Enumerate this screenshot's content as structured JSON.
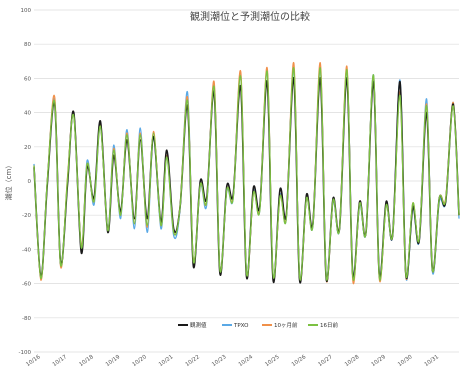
{
  "chart_data": {
    "type": "line",
    "title": "観測潮位と予測潮位の比較",
    "ylabel": "潮位（cm）",
    "xlabel": "",
    "ylim": [
      -100,
      100
    ],
    "yticks": [
      -100,
      -80,
      -60,
      -40,
      -20,
      0,
      20,
      40,
      60,
      80,
      100
    ],
    "xlim": [
      0,
      16
    ],
    "xticks": [
      {
        "x": 0,
        "label": "10/16"
      },
      {
        "x": 1,
        "label": "10/17"
      },
      {
        "x": 2,
        "label": "10/18"
      },
      {
        "x": 3,
        "label": "10/19"
      },
      {
        "x": 4,
        "label": "10/20"
      },
      {
        "x": 5,
        "label": "10/21"
      },
      {
        "x": 6,
        "label": "10/22"
      },
      {
        "x": 7,
        "label": "10/23"
      },
      {
        "x": 8,
        "label": "10/24"
      },
      {
        "x": 9,
        "label": "10/25"
      },
      {
        "x": 10,
        "label": "10/26"
      },
      {
        "x": 11,
        "label": "10/27"
      },
      {
        "x": 12,
        "label": "10/28"
      },
      {
        "x": 13,
        "label": "10/29"
      },
      {
        "x": 14,
        "label": "10/30"
      },
      {
        "x": 15,
        "label": "10/31"
      }
    ],
    "grid": true,
    "legend_position": "bottom",
    "series": [
      {
        "name": "観測値",
        "color": "#1a1a1a",
        "x": [
          0,
          0.26,
          0.5,
          0.78,
          1,
          1.26,
          1.5,
          1.78,
          2,
          2.26,
          2.5,
          2.78,
          3,
          3.26,
          3.5,
          3.78,
          4,
          4.26,
          4.5,
          4.78,
          5,
          5.26,
          5.5,
          5.78,
          6,
          6.26,
          6.5,
          6.78,
          7,
          7.26,
          7.5,
          7.78,
          8,
          8.26,
          8.5,
          8.78,
          9,
          9.26,
          9.5,
          9.78,
          10,
          10.26,
          10.5,
          10.78,
          11,
          11.26,
          11.5,
          11.78,
          12,
          12.26,
          12.5,
          12.78,
          13,
          13.26,
          13.5,
          13.78,
          14,
          14.26,
          14.5,
          14.78,
          15,
          15.26,
          15.5,
          15.78,
          16
        ],
        "values": [
          8,
          -56,
          -2,
          45,
          -48,
          -2,
          40,
          -42,
          8,
          -10,
          35,
          -30,
          15,
          -18,
          24,
          -22,
          24,
          -22,
          26,
          -24,
          18,
          -28,
          -15,
          44,
          -50,
          0,
          -10,
          52,
          -54,
          -3,
          -8,
          55,
          -56,
          -4,
          -15,
          58,
          -58,
          -5,
          -20,
          60,
          -58,
          -8,
          -25,
          60,
          -57,
          -10,
          -28,
          60,
          -55,
          -12,
          -30,
          58,
          -55,
          -12,
          -32,
          58,
          -55,
          -15,
          -35,
          40,
          -52,
          -10,
          -12,
          45,
          -20
        ]
      },
      {
        "name": "TPXO",
        "color": "#5aa9e6",
        "x": [
          0,
          0.26,
          0.5,
          0.78,
          1,
          1.26,
          1.5,
          1.78,
          2,
          2.26,
          2.5,
          2.78,
          3,
          3.26,
          3.5,
          3.78,
          4,
          4.26,
          4.5,
          4.78,
          5,
          5.26,
          5.5,
          5.78,
          6,
          6.26,
          6.5,
          6.78,
          7,
          7.26,
          7.5,
          7.78,
          8,
          8.26,
          8.5,
          8.78,
          9,
          9.26,
          9.5,
          9.78,
          10,
          10.26,
          10.5,
          10.78,
          11,
          11.26,
          11.5,
          11.78,
          12,
          12.26,
          12.5,
          12.78,
          13,
          13.26,
          13.5,
          13.78,
          14,
          14.26,
          14.5,
          14.78,
          15,
          15.26,
          15.5,
          15.78,
          16
        ],
        "values": [
          10,
          -57,
          0,
          47,
          -49,
          0,
          39,
          -40,
          12,
          -14,
          32,
          -28,
          21,
          -22,
          30,
          -28,
          31,
          -30,
          26,
          -28,
          14,
          -32,
          -16,
          52,
          -48,
          -3,
          -14,
          56,
          -52,
          -6,
          -10,
          62,
          -54,
          -6,
          -17,
          64,
          -55,
          -8,
          -22,
          66,
          -56,
          -10,
          -26,
          66,
          -55,
          -12,
          -28,
          65,
          -54,
          -14,
          -30,
          62,
          -54,
          -14,
          -32,
          59,
          -56,
          -16,
          -35,
          48,
          -53,
          -12,
          -12,
          46,
          -22
        ]
      },
      {
        "name": "10ヶ月前",
        "color": "#f0904a",
        "x": [
          0,
          0.26,
          0.5,
          0.78,
          1,
          1.26,
          1.5,
          1.78,
          2,
          2.26,
          2.5,
          2.78,
          3,
          3.26,
          3.5,
          3.78,
          4,
          4.26,
          4.5,
          4.78,
          5,
          5.26,
          5.5,
          5.78,
          6,
          6.26,
          6.5,
          6.78,
          7,
          7.26,
          7.5,
          7.78,
          8,
          8.26,
          8.5,
          8.78,
          9,
          9.26,
          9.5,
          9.78,
          10,
          10.26,
          10.5,
          10.78,
          11,
          11.26,
          11.5,
          11.78,
          12,
          12.26,
          12.5,
          12.78,
          13,
          13.26,
          13.5,
          13.78,
          14,
          14.26,
          14.5,
          14.78,
          15,
          15.26,
          15.5,
          15.78,
          16
        ],
        "values": [
          9,
          -58,
          0,
          49,
          -50,
          2,
          39,
          -38,
          10,
          -12,
          33,
          -29,
          19,
          -20,
          28,
          -25,
          28,
          -27,
          29,
          -26,
          15,
          -30,
          -14,
          49,
          -47,
          -2,
          -12,
          58,
          -52,
          -5,
          -9,
          64,
          -55,
          -7,
          -16,
          66,
          -56,
          -9,
          -21,
          69,
          -57,
          -10,
          -25,
          69,
          -57,
          -11,
          -27,
          67,
          -58,
          -12,
          -30,
          61,
          -57,
          -14,
          -32,
          52,
          -56,
          -13,
          -34,
          45,
          -52,
          -10,
          -10,
          46,
          -20
        ]
      },
      {
        "name": "16日前",
        "color": "#7cc142",
        "x": [
          0,
          0.26,
          0.5,
          0.78,
          1,
          1.26,
          1.5,
          1.78,
          2,
          2.26,
          2.5,
          2.78,
          3,
          3.26,
          3.5,
          3.78,
          4,
          4.26,
          4.5,
          4.78,
          5,
          5.26,
          5.5,
          5.78,
          6,
          6.26,
          6.5,
          6.78,
          7,
          7.26,
          7.5,
          7.78,
          8,
          8.26,
          8.5,
          8.78,
          9,
          9.26,
          9.5,
          9.78,
          10,
          10.26,
          10.5,
          10.78,
          11,
          11.26,
          11.5,
          11.78,
          12,
          12.26,
          12.5,
          12.78,
          13,
          13.26,
          13.5,
          13.78,
          14,
          14.26,
          14.5,
          14.78,
          15,
          15.26,
          15.5,
          15.78,
          16
        ],
        "values": [
          9,
          -57,
          0,
          46,
          -49,
          1,
          38,
          -39,
          10,
          -12,
          32,
          -29,
          18,
          -20,
          27,
          -25,
          27,
          -26,
          28,
          -26,
          14,
          -30,
          -15,
          47,
          -47,
          -2,
          -12,
          55,
          -52,
          -5,
          -10,
          61,
          -54,
          -7,
          -17,
          64,
          -55,
          -9,
          -22,
          66,
          -56,
          -10,
          -26,
          66,
          -56,
          -11,
          -28,
          65,
          -56,
          -13,
          -30,
          62,
          -56,
          -14,
          -32,
          50,
          -55,
          -13,
          -34,
          44,
          -52,
          -10,
          -11,
          44,
          -20
        ]
      }
    ]
  }
}
